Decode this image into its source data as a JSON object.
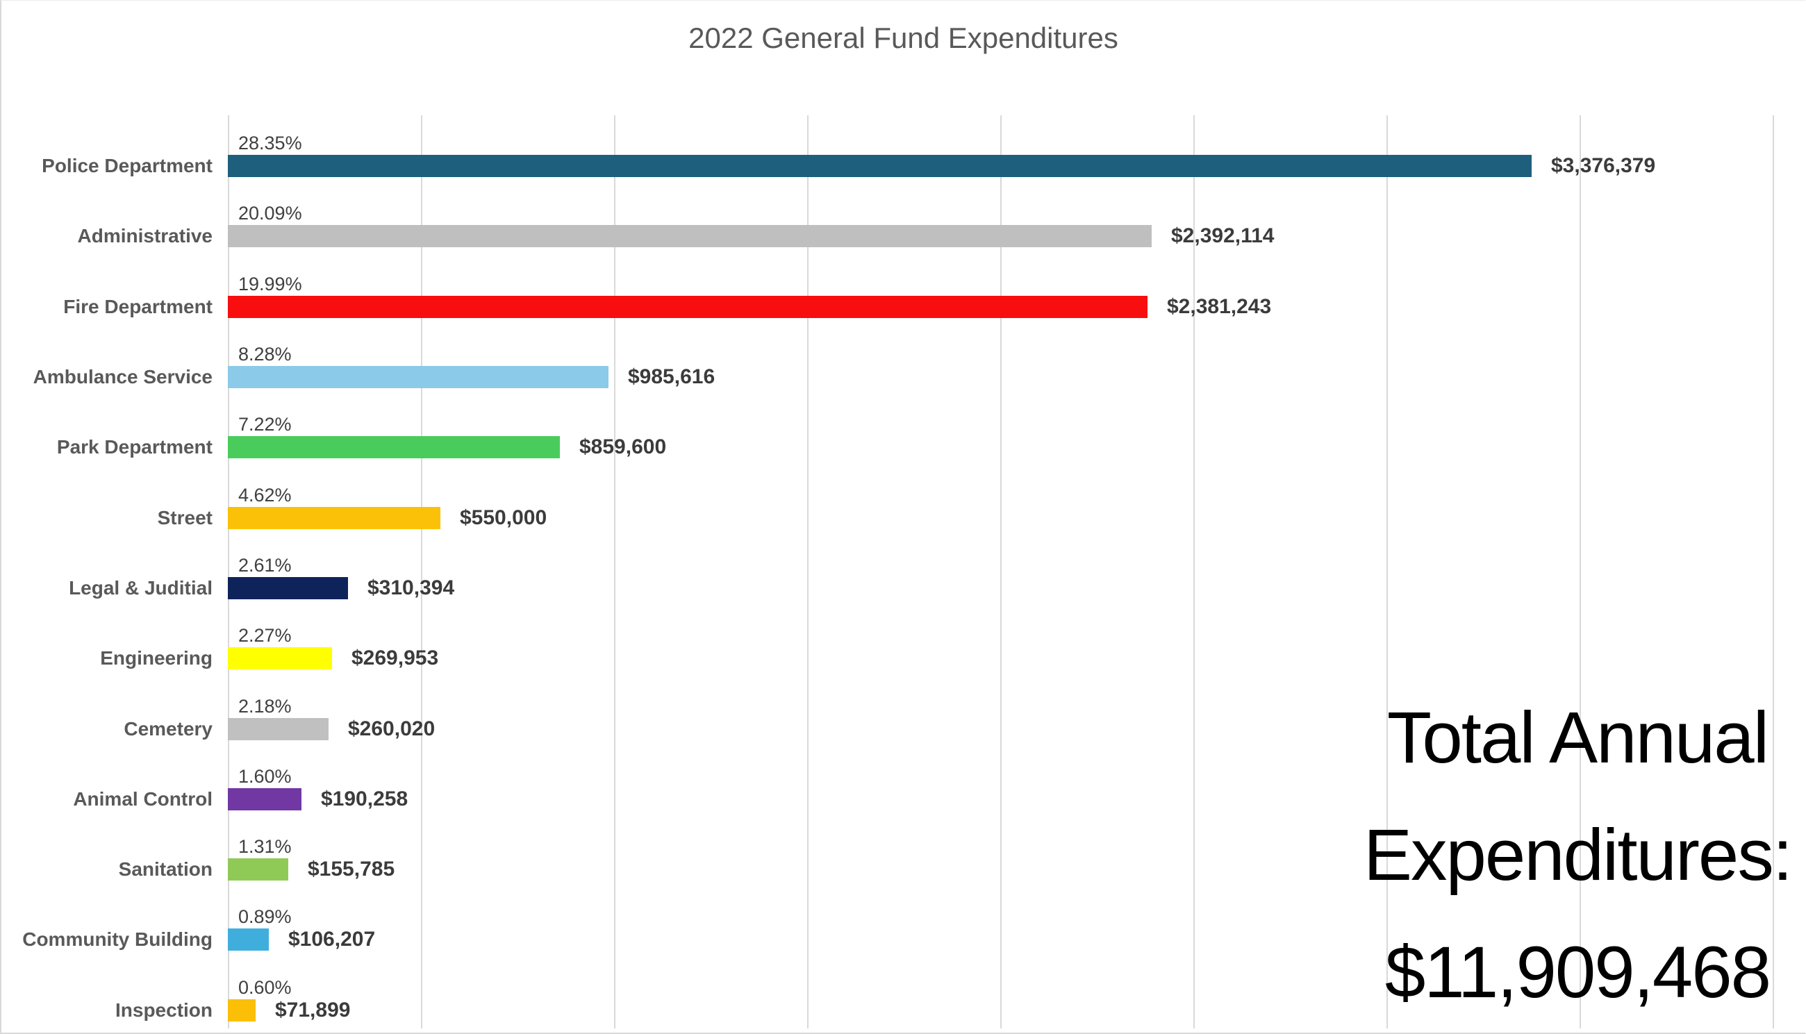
{
  "page": {
    "background": "#FFFFFF",
    "border_color": "#D9D9D9"
  },
  "header": {
    "title": "2022 General Fund Expenditures",
    "title_color": "#595959"
  },
  "total_callout": {
    "line1": "Total Annual",
    "line2": "Expenditures:",
    "line3": "$11,909,468",
    "color": "#000000"
  },
  "chart_data": {
    "type": "bar",
    "orientation": "horizontal",
    "title": "2022 General Fund Expenditures",
    "categories": [
      "Police Department",
      "Administrative",
      "Fire Department",
      "Ambulance Service",
      "Park Department",
      "Street",
      "Legal & Juditial",
      "Engineering",
      "Cemetery",
      "Animal Control",
      "Sanitation",
      "Community Building",
      "Inspection"
    ],
    "values": [
      3376379,
      2392114,
      2381243,
      985616,
      859600,
      550000,
      310394,
      269953,
      260020,
      190258,
      155785,
      106207,
      71899
    ],
    "percent_labels": [
      "28.35%",
      "20.09%",
      "19.99%",
      "8.28%",
      "7.22%",
      "4.62%",
      "2.61%",
      "2.27%",
      "2.18%",
      "1.60%",
      "1.31%",
      "0.89%",
      "0.60%"
    ],
    "value_labels": [
      "$3,376,379",
      "$2,392,114",
      "$2,381,243",
      "$985,616",
      "$859,600",
      "$550,000",
      "$310,394",
      "$269,953",
      "$260,020",
      "$190,258",
      "$155,785",
      "$106,207",
      "$71,899"
    ],
    "bar_colors": [
      "#1E5F7E",
      "#BFBFBF",
      "#F80E0E",
      "#8BCAE9",
      "#4ACC5C",
      "#FBC108",
      "#0F235B",
      "#FFFF00",
      "#C0C0C0",
      "#7138A4",
      "#8FCA56",
      "#40AEDD",
      "#FBBF08"
    ],
    "xlim": [
      0,
      4000000
    ],
    "gridline_step": 500000,
    "grid": true,
    "legend": false,
    "x_axis_tick_labels_visible": false,
    "annotation": "Total Annual Expenditures: $11,909,468",
    "category_label_color": "#595959",
    "percent_label_color": "#404040",
    "value_label_color": "#3B3B3B",
    "gridline_color": "#D9D9D9"
  }
}
